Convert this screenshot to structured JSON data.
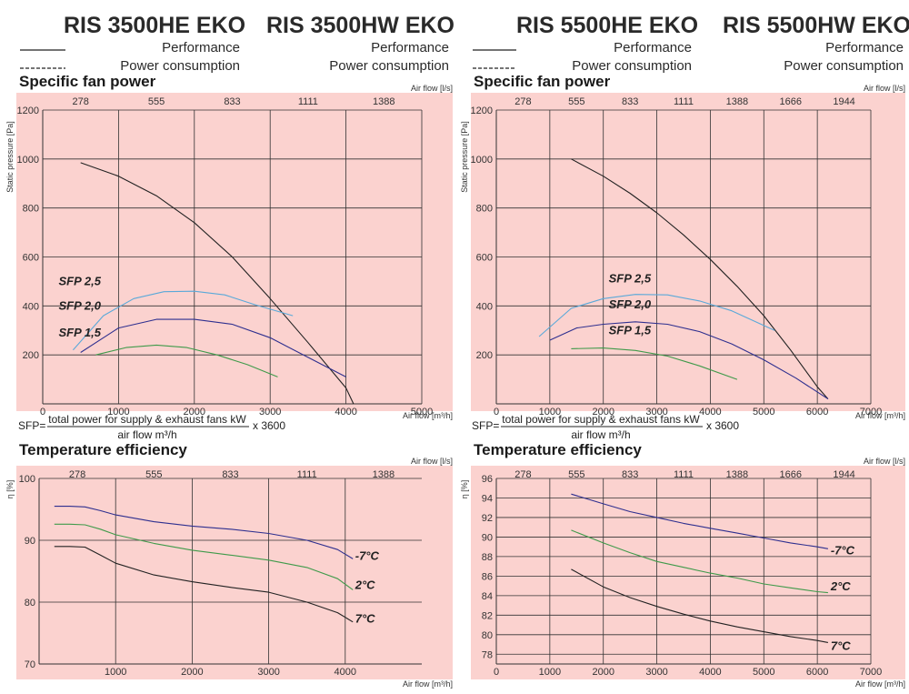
{
  "header": {
    "left": {
      "models": [
        "RIS 3500HE EKO",
        "RIS 3500HW EKO"
      ],
      "legend_performance": "Performance",
      "legend_power": "Power consumption"
    },
    "right": {
      "models": [
        "RIS 5500HE EKO",
        "RIS 5500HW EKO"
      ],
      "legend_performance": "Performance",
      "legend_power": "Power consumption"
    }
  },
  "formula": {
    "prefix": "SFP=",
    "numerator": "total power for supply & exhaust fans kW",
    "denominator": "air flow m³/h",
    "suffix": "x 3600"
  },
  "colors": {
    "plot_bg": "#fbd2cf",
    "grid": "#333333",
    "performance": "#222222",
    "sfp_2_5": "#5aa9d9",
    "sfp_2_0": "#2e2f8f",
    "sfp_1_5": "#3f9a4a",
    "minus7": "#2e2f8f",
    "plus2": "#3f9a4a",
    "plus7": "#222222"
  },
  "chart_data": [
    {
      "id": "sfp_3500",
      "type": "line",
      "title": "Specific fan power",
      "xlabel": "Air flow [m³/h]",
      "ylabel": "Static pressure [Pa]",
      "x2label": "Air flow [l/s]",
      "xlim": [
        0,
        5000
      ],
      "ylim": [
        0,
        1200
      ],
      "xticks": [
        0,
        1000,
        2000,
        3000,
        4000,
        5000
      ],
      "yticks": [
        200,
        400,
        600,
        800,
        1000,
        1200
      ],
      "ytick_labels": [
        "200",
        "400",
        "600",
        "800",
        "1000",
        "1200"
      ],
      "x2ticks": [
        "278",
        "555",
        "833",
        "1111",
        "1388"
      ],
      "x2_positions": [
        1000,
        2000,
        3000,
        4000,
        5000
      ],
      "series": [
        {
          "name": "Performance",
          "color_key": "performance",
          "x": [
            500,
            1000,
            1500,
            2000,
            2500,
            3000,
            3500,
            4000,
            4100
          ],
          "y": [
            985,
            930,
            850,
            740,
            600,
            430,
            250,
            65,
            0
          ]
        },
        {
          "name": "SFP 2,5",
          "label": "SFP 2,5",
          "color_key": "sfp_2_5",
          "x": [
            400,
            800,
            1200,
            1600,
            2000,
            2400,
            2800,
            3300
          ],
          "y": [
            220,
            360,
            430,
            458,
            460,
            445,
            405,
            360
          ],
          "label_at": [
            210,
            500
          ]
        },
        {
          "name": "SFP 2,0",
          "label": "SFP 2,0",
          "color_key": "sfp_2_0",
          "x": [
            500,
            1000,
            1500,
            2000,
            2500,
            3000,
            3500,
            4000
          ],
          "y": [
            210,
            310,
            345,
            345,
            325,
            270,
            190,
            110
          ],
          "label_at": [
            210,
            400
          ]
        },
        {
          "name": "SFP 1,5",
          "label": "SFP 1,5",
          "color_key": "sfp_1_5",
          "x": [
            700,
            1100,
            1500,
            1900,
            2300,
            2700,
            3100
          ],
          "y": [
            200,
            230,
            240,
            230,
            200,
            160,
            110
          ],
          "label_at": [
            210,
            290
          ]
        }
      ]
    },
    {
      "id": "sfp_5500",
      "type": "line",
      "title": "Specific fan power",
      "xlabel": "Air flow [m³/h]",
      "ylabel": "Static pressure [Pa]",
      "x2label": "Air flow [l/s]",
      "xlim": [
        0,
        7000
      ],
      "ylim": [
        0,
        1200
      ],
      "xticks": [
        0,
        1000,
        2000,
        3000,
        4000,
        5000,
        6000,
        7000
      ],
      "yticks": [
        200,
        400,
        600,
        800,
        1000,
        1200
      ],
      "ytick_labels": [
        "200",
        "400",
        "600",
        "800",
        "1000",
        "1200"
      ],
      "x2ticks": [
        "278",
        "555",
        "833",
        "1111",
        "1388",
        "1666",
        "1944"
      ],
      "x2_positions": [
        1000,
        2000,
        3000,
        4000,
        5000,
        6000,
        7000
      ],
      "series": [
        {
          "name": "Performance",
          "color_key": "performance",
          "x": [
            1400,
            2000,
            2500,
            3000,
            3500,
            4000,
            4500,
            5000,
            5500,
            6000,
            6200
          ],
          "y": [
            1000,
            930,
            860,
            780,
            690,
            590,
            480,
            360,
            220,
            70,
            20
          ]
        },
        {
          "name": "SFP 2,5",
          "label": "SFP 2,5",
          "color_key": "sfp_2_5",
          "x": [
            800,
            1400,
            2000,
            2600,
            3200,
            3800,
            4400,
            5200
          ],
          "y": [
            275,
            390,
            430,
            447,
            445,
            420,
            380,
            300
          ],
          "label_at": [
            2100,
            510
          ]
        },
        {
          "name": "SFP 2,0",
          "label": "SFP 2,0",
          "color_key": "sfp_2_0",
          "x": [
            1000,
            1500,
            2000,
            2600,
            3200,
            3800,
            4400,
            5000,
            5600,
            6200
          ],
          "y": [
            260,
            310,
            325,
            335,
            325,
            295,
            245,
            180,
            105,
            20
          ],
          "label_at": [
            2100,
            405
          ]
        },
        {
          "name": "SFP 1,5",
          "label": "SFP 1,5",
          "color_key": "sfp_1_5",
          "x": [
            1400,
            2000,
            2600,
            3200,
            3800,
            4500
          ],
          "y": [
            225,
            228,
            218,
            195,
            155,
            100
          ],
          "label_at": [
            2100,
            300
          ]
        }
      ]
    },
    {
      "id": "temp_3500",
      "type": "line",
      "title": "Temperature efficiency",
      "xlabel": "Air flow [m³/h]",
      "ylabel": "η [%]",
      "x2label": "Air flow [l/s]",
      "xlim": [
        0,
        5000
      ],
      "ylim": [
        70,
        100
      ],
      "xticks": [
        1000,
        2000,
        3000,
        4000
      ],
      "yticks": [
        70,
        80,
        90,
        100
      ],
      "ytick_labels": [
        "70",
        "80",
        "90",
        "100"
      ],
      "x2ticks": [
        "278",
        "555",
        "833",
        "1111",
        "1388"
      ],
      "x2_positions": [
        1000,
        2000,
        3000,
        4000,
        5000
      ],
      "series": [
        {
          "name": "-7°C",
          "label": "-7°C",
          "color_key": "minus7",
          "x": [
            200,
            400,
            600,
            800,
            1000,
            1500,
            2000,
            2500,
            3000,
            3500,
            3900,
            4100
          ],
          "y": [
            95.5,
            95.5,
            95.4,
            94.8,
            94.1,
            93.0,
            92.3,
            91.8,
            91.1,
            90.0,
            88.5,
            87.0
          ],
          "label_at": [
            4130,
            87.4
          ]
        },
        {
          "name": "2°C",
          "label": "2°C",
          "color_key": "plus2",
          "x": [
            200,
            400,
            600,
            800,
            1000,
            1500,
            2000,
            2500,
            3000,
            3500,
            3900,
            4100
          ],
          "y": [
            92.6,
            92.6,
            92.5,
            91.8,
            90.9,
            89.5,
            88.4,
            87.6,
            86.8,
            85.6,
            83.8,
            82.0
          ],
          "label_at": [
            4130,
            82.7
          ]
        },
        {
          "name": "7°C",
          "label": "7°C",
          "color_key": "plus7",
          "x": [
            200,
            400,
            600,
            800,
            1000,
            1500,
            2000,
            2500,
            3000,
            3500,
            3900,
            4100
          ],
          "y": [
            89.0,
            89.0,
            88.9,
            87.6,
            86.3,
            84.4,
            83.3,
            82.4,
            81.6,
            80.0,
            78.3,
            76.8
          ],
          "label_at": [
            4130,
            77.3
          ]
        }
      ]
    },
    {
      "id": "temp_5500",
      "type": "line",
      "title": "Temperature efficiency",
      "xlabel": "Air flow [m³/h]",
      "ylabel": "η [%]",
      "x2label": "Air flow [l/s]",
      "xlim": [
        0,
        7000
      ],
      "ylim": [
        77,
        96
      ],
      "xticks": [
        0,
        1000,
        2000,
        3000,
        4000,
        5000,
        6000,
        7000
      ],
      "yticks": [
        78,
        80,
        82,
        84,
        86,
        88,
        90,
        92,
        94,
        96
      ],
      "ytick_labels": [
        "78",
        "80",
        "82",
        "84",
        "86",
        "88",
        "90",
        "92",
        "94",
        "96"
      ],
      "x2ticks": [
        "278",
        "555",
        "833",
        "1111",
        "1388",
        "1666",
        "1944"
      ],
      "x2_positions": [
        1000,
        2000,
        3000,
        4000,
        5000,
        6000,
        7000
      ],
      "series": [
        {
          "name": "-7°C",
          "label": "-7°C",
          "color_key": "minus7",
          "x": [
            1400,
            2000,
            2500,
            3000,
            3500,
            4000,
            4500,
            5000,
            5500,
            6000,
            6200
          ],
          "y": [
            94.4,
            93.4,
            92.6,
            92.0,
            91.4,
            90.9,
            90.4,
            89.9,
            89.4,
            89.0,
            88.8
          ],
          "label_at": [
            6250,
            88.6
          ]
        },
        {
          "name": "2°C",
          "label": "2°C",
          "color_key": "plus2",
          "x": [
            1400,
            2000,
            2500,
            3000,
            3500,
            4000,
            4500,
            5000,
            5500,
            6000,
            6200
          ],
          "y": [
            90.7,
            89.4,
            88.4,
            87.5,
            86.9,
            86.3,
            85.8,
            85.2,
            84.8,
            84.4,
            84.3
          ],
          "label_at": [
            6250,
            84.9
          ]
        },
        {
          "name": "7°C",
          "label": "7°C",
          "color_key": "plus7",
          "x": [
            1400,
            2000,
            2500,
            3000,
            3500,
            4000,
            4500,
            5000,
            5500,
            6000,
            6200
          ],
          "y": [
            86.7,
            84.9,
            83.8,
            82.9,
            82.1,
            81.4,
            80.8,
            80.3,
            79.8,
            79.4,
            79.2
          ],
          "label_at": [
            6250,
            78.8
          ]
        }
      ]
    }
  ]
}
